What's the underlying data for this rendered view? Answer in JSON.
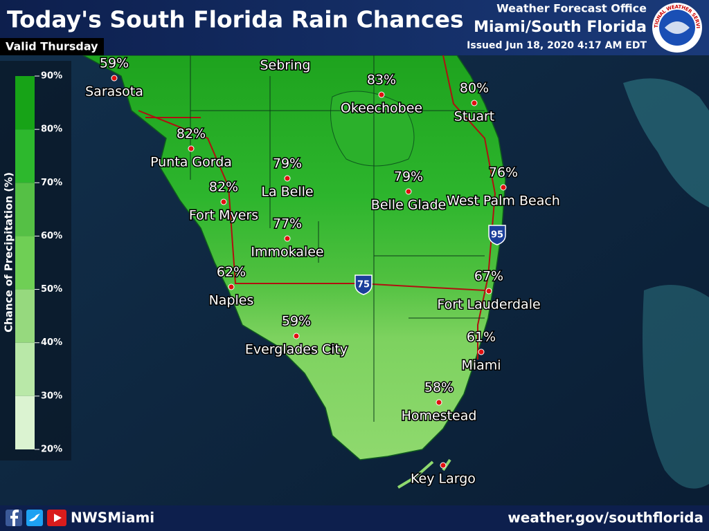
{
  "header": {
    "title": "Today's South Florida Rain Chances",
    "subtitle": "Valid Thursday",
    "office": "Weather Forecast Office",
    "office_region": "Miami/South Florida",
    "issued": "Issued Jun 18, 2020 4:17 AM EDT",
    "logo_text": "NATIONAL WEATHER SERVICE"
  },
  "legend": {
    "title": "Chance of Precipitation (%)",
    "ticks": [
      "90%",
      "80%",
      "70%",
      "60%",
      "50%",
      "40%",
      "30%",
      "20%"
    ]
  },
  "cities": [
    {
      "name": "Sarasota",
      "chance": "59%"
    },
    {
      "name": "Sebring"
    },
    {
      "name": "Okeechobee",
      "chance": "83%"
    },
    {
      "name": "Stuart",
      "chance": "80%"
    },
    {
      "name": "Punta Gorda",
      "chance": "82%"
    },
    {
      "name": "La Belle",
      "chance": "79%"
    },
    {
      "name": "Belle Glade",
      "chance": "79%"
    },
    {
      "name": "West Palm Beach",
      "chance": "76%"
    },
    {
      "name": "Fort Myers",
      "chance": "82%"
    },
    {
      "name": "Immokalee",
      "chance": "77%"
    },
    {
      "name": "Naples",
      "chance": "62%"
    },
    {
      "name": "Fort Lauderdale",
      "chance": "67%"
    },
    {
      "name": "Everglades City",
      "chance": "59%"
    },
    {
      "name": "Miami",
      "chance": "61%"
    },
    {
      "name": "Homestead",
      "chance": "58%"
    },
    {
      "name": "Key Largo"
    }
  ],
  "highways": [
    "75",
    "95"
  ],
  "footer": {
    "handle": "NWSMiami",
    "url": "weather.gov/southflorida"
  }
}
